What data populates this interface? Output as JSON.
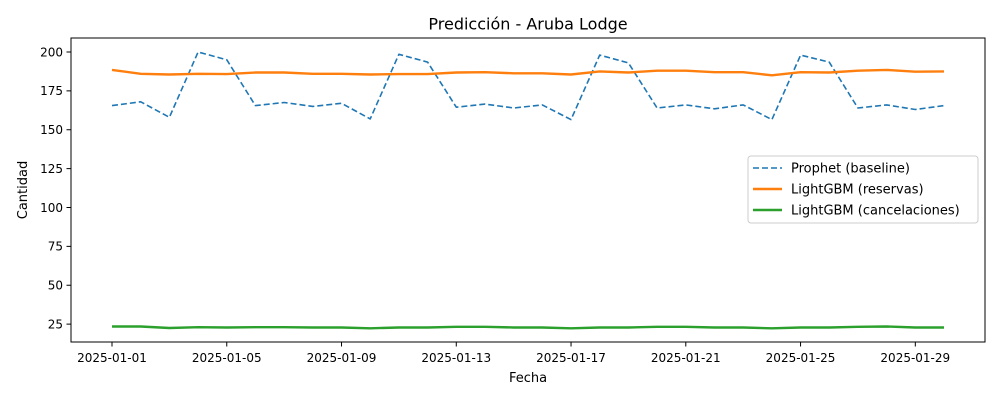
{
  "chart_data": {
    "type": "line",
    "title": "Predicción - Aruba Lodge",
    "xlabel": "Fecha",
    "ylabel": "Cantidad",
    "x": [
      "2025-01-01",
      "2025-01-02",
      "2025-01-03",
      "2025-01-04",
      "2025-01-05",
      "2025-01-06",
      "2025-01-07",
      "2025-01-08",
      "2025-01-09",
      "2025-01-10",
      "2025-01-11",
      "2025-01-12",
      "2025-01-13",
      "2025-01-14",
      "2025-01-15",
      "2025-01-16",
      "2025-01-17",
      "2025-01-18",
      "2025-01-19",
      "2025-01-20",
      "2025-01-21",
      "2025-01-22",
      "2025-01-23",
      "2025-01-24",
      "2025-01-25",
      "2025-01-26",
      "2025-01-27",
      "2025-01-28",
      "2025-01-29",
      "2025-01-30"
    ],
    "x_ticks": [
      "2025-01-01",
      "2025-01-05",
      "2025-01-09",
      "2025-01-13",
      "2025-01-17",
      "2025-01-21",
      "2025-01-25",
      "2025-01-29"
    ],
    "y_ticks": [
      25,
      50,
      75,
      100,
      125,
      150,
      175,
      200
    ],
    "ylim": [
      13.5,
      209
    ],
    "grid": false,
    "legend_position": "right",
    "series": [
      {
        "name": "Prophet (baseline)",
        "color": "#1f77b4",
        "style": "dashed",
        "values": [
          165.5,
          168,
          158,
          200,
          195,
          165.5,
          167.5,
          165,
          167,
          157,
          198.5,
          193.5,
          164.5,
          166.5,
          164,
          166,
          156.5,
          198,
          193,
          164,
          166,
          163.5,
          166,
          156.5,
          198,
          193.5,
          164,
          166,
          163,
          165.5
        ]
      },
      {
        "name": "LightGBM (reservas)",
        "color": "#ff7f0e",
        "style": "solid",
        "values": [
          188.5,
          186,
          185.5,
          186,
          185.8,
          186.8,
          186.8,
          186,
          186,
          185.5,
          185.8,
          185.8,
          186.8,
          187,
          186.3,
          186.3,
          185.5,
          187.5,
          186.8,
          188,
          188,
          187,
          187,
          185,
          187,
          186.8,
          188,
          188.5,
          187.3,
          187.5
        ]
      },
      {
        "name": "LightGBM (cancelaciones)",
        "color": "#2ca02c",
        "style": "solid",
        "values": [
          23.5,
          23.5,
          22.5,
          23,
          22.8,
          23,
          23,
          22.8,
          22.8,
          22.3,
          22.8,
          22.8,
          23.3,
          23.3,
          22.8,
          22.8,
          22.3,
          22.8,
          22.8,
          23.3,
          23.3,
          22.8,
          22.8,
          22.3,
          22.8,
          22.8,
          23.3,
          23.5,
          22.8,
          22.8
        ]
      }
    ]
  }
}
